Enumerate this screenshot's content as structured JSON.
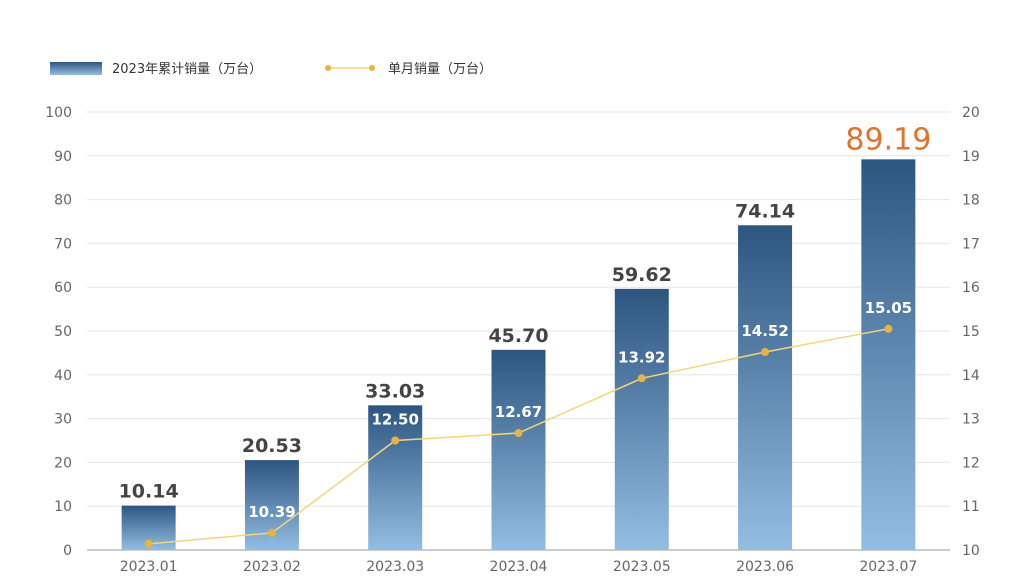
{
  "chart_data": {
    "type": "bar+line",
    "categories": [
      "2023.01",
      "2023.02",
      "2023.03",
      "2023.04",
      "2023.05",
      "2023.06",
      "2023.07"
    ],
    "series": [
      {
        "name": "2023年累计销量（万台）",
        "type": "bar",
        "axis": "left",
        "values": [
          10.14,
          20.53,
          33.03,
          45.7,
          59.62,
          74.14,
          89.19
        ],
        "labels": [
          "10.14",
          "20.53",
          "33.03",
          "45.70",
          "59.62",
          "74.14",
          "89.19"
        ]
      },
      {
        "name": "单月销量（万台）",
        "type": "line",
        "axis": "right",
        "values": [
          10.14,
          10.39,
          12.5,
          12.67,
          13.92,
          14.52,
          15.05
        ],
        "labels": [
          "",
          "10.39",
          "12.50",
          "12.67",
          "13.92",
          "14.52",
          "15.05"
        ]
      }
    ],
    "y_left": {
      "min": 0,
      "max": 100,
      "ticks": [
        "0",
        "10",
        "20",
        "30",
        "40",
        "50",
        "60",
        "70",
        "80",
        "90",
        "100"
      ]
    },
    "y_right": {
      "min": 10,
      "max": 20,
      "ticks": [
        "10",
        "11",
        "12",
        "13",
        "14",
        "15",
        "16",
        "17",
        "18",
        "19",
        "20"
      ]
    },
    "grid": true,
    "legend_position": "top-left",
    "highlight_last_bar_label": true,
    "colors": {
      "bar_top": "#2c5680",
      "bar_bottom": "#94bde2",
      "line": "#f5d57a",
      "marker": "#e8b53a",
      "highlight": "#e0742c",
      "grid": "#e6e6e6",
      "axis": "#999999"
    }
  }
}
